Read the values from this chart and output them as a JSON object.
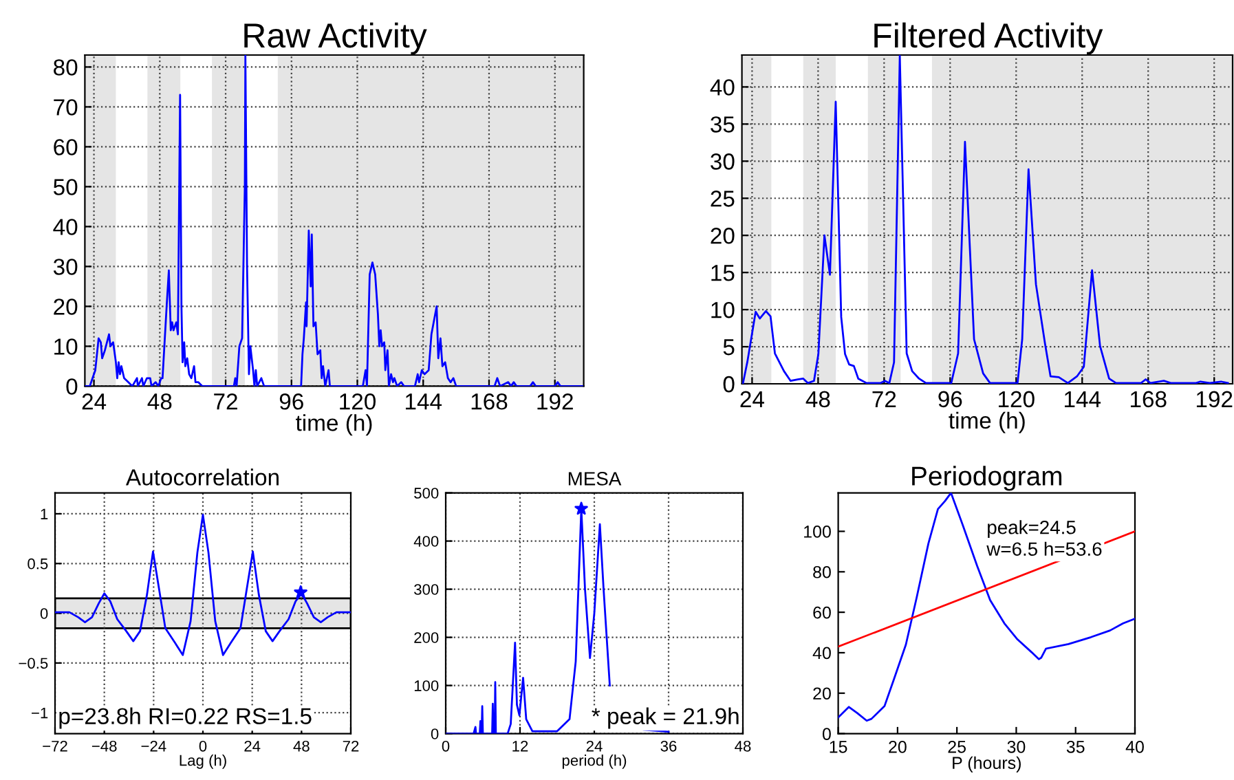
{
  "chart_data": [
    {
      "type": "line",
      "title": "Raw Activity",
      "xlabel": "time (h)",
      "xlim": [
        20.7,
        202.5
      ],
      "ylim": [
        0,
        83
      ],
      "xticks": [
        24,
        48,
        72,
        96,
        120,
        144,
        168,
        192
      ],
      "yticks": [
        0,
        10,
        20,
        30,
        40,
        50,
        60,
        70,
        80
      ],
      "grid": true,
      "bands": [
        {
          "axis": "x",
          "from": 20.7,
          "to": 32,
          "color": "#e5e5e5"
        },
        {
          "axis": "x",
          "from": 43.5,
          "to": 55.5,
          "color": "#e5e5e5"
        },
        {
          "axis": "x",
          "from": 67,
          "to": 79,
          "color": "#e5e5e5"
        },
        {
          "axis": "x",
          "from": 91,
          "to": 202.5,
          "color": "#e5e5e5"
        }
      ],
      "series": [
        {
          "color": "#0000ff",
          "x": [
            21,
            22.5,
            23.5,
            24.5,
            25.7,
            26.5,
            27,
            28,
            29.5,
            30,
            31,
            32,
            32.5,
            33,
            33.5,
            34,
            35,
            36.5,
            38,
            39.7,
            40,
            41.5,
            42,
            43.3,
            44.5,
            45,
            46.5,
            47.5,
            48.5,
            49,
            49.5,
            50.5,
            51.3,
            52,
            52.5,
            53,
            54,
            54.6,
            55.4,
            55.9,
            56.3,
            56.9,
            57.3,
            58,
            58.7,
            59.5,
            60.5,
            61,
            62,
            63.5,
            75,
            75.5,
            76,
            77,
            78,
            79,
            79.2,
            79.8,
            80.5,
            81,
            82,
            82.5,
            83,
            83.5,
            85,
            86,
            99.5,
            100,
            100.5,
            101.3,
            101.5,
            102.3,
            103,
            103.4,
            104,
            104.8,
            105.5,
            106.5,
            107,
            107.5,
            108.3,
            109.5,
            110,
            122,
            123,
            123.5,
            124.5,
            125.5,
            126.5,
            127.5,
            128,
            128.5,
            129,
            129.8,
            130.2,
            131,
            131.5,
            132.3,
            133,
            133.5,
            134.5,
            136,
            137,
            141,
            142,
            142.5,
            143.5,
            144.5,
            146,
            147,
            148.9,
            149.5,
            150.3,
            151,
            152,
            153,
            154,
            155,
            156,
            170,
            171,
            172,
            175,
            176,
            177,
            178,
            183,
            184,
            185,
            192,
            193,
            194,
            202
          ],
          "values": [
            0,
            0,
            2,
            4,
            12,
            11,
            7,
            9,
            13,
            10,
            11,
            6,
            2,
            6,
            3,
            5,
            2,
            1,
            0,
            2,
            0,
            2,
            0,
            2,
            2,
            0,
            1,
            0,
            2,
            2,
            8,
            20,
            29,
            14,
            16,
            14,
            16,
            13,
            73,
            20,
            6,
            11,
            5,
            7,
            3,
            2,
            5,
            1,
            1,
            0,
            0,
            2,
            0,
            10,
            12,
            50,
            83,
            30,
            3,
            10,
            4,
            0,
            4,
            0,
            2,
            0,
            0,
            8,
            12,
            21,
            15,
            39,
            25,
            38,
            15,
            16,
            8,
            9,
            2,
            5,
            0,
            4,
            0,
            0,
            4,
            0,
            28,
            31,
            28,
            18,
            10,
            14,
            10,
            11,
            4,
            9,
            0,
            3,
            1,
            2,
            0,
            1,
            0,
            0,
            3,
            1,
            4,
            3,
            4,
            13,
            20,
            7,
            12,
            5,
            6,
            2,
            1,
            2,
            0,
            0,
            2,
            0,
            1,
            0,
            1,
            0,
            0,
            1,
            0,
            0,
            1,
            0,
            0
          ]
        }
      ]
    },
    {
      "type": "line",
      "title": "Filtered Activity",
      "xlabel": "time (h)",
      "xlim": [
        20.3,
        198.7
      ],
      "ylim": [
        0,
        44.3
      ],
      "xticks": [
        24,
        48,
        72,
        96,
        120,
        144,
        168,
        192
      ],
      "yticks": [
        0,
        5,
        10,
        15,
        20,
        25,
        30,
        35,
        40
      ],
      "grid": true,
      "bands": [
        {
          "axis": "x",
          "from": 20.3,
          "to": 31,
          "color": "#e5e5e5"
        },
        {
          "axis": "x",
          "from": 42.6,
          "to": 54.4,
          "color": "#e5e5e5"
        },
        {
          "axis": "x",
          "from": 66.1,
          "to": 78,
          "color": "#e5e5e5"
        },
        {
          "axis": "x",
          "from": 89.4,
          "to": 198.7,
          "color": "#e5e5e5"
        }
      ],
      "series": [
        {
          "color": "#0000ff",
          "x": [
            20.7,
            22.3,
            25.3,
            26.8,
            29,
            30.7,
            32.3,
            35.6,
            38,
            40.6,
            42.6,
            44.3,
            46.5,
            48.1,
            50.3,
            52.3,
            54.4,
            56.4,
            57.8,
            59.3,
            61,
            62.6,
            65.6,
            70.6,
            72.3,
            73.9,
            75.6,
            77.7,
            80.2,
            82.2,
            84.7,
            87.2,
            96.4,
            98.9,
            101.4,
            104.7,
            108,
            110.5,
            120.5,
            122.2,
            124.5,
            127.2,
            130.5,
            132.5,
            135.5,
            138.8,
            142.1,
            144.6,
            147.6,
            150.5,
            153.8,
            156.3,
            165.4,
            167.1,
            168.8,
            173.7,
            176.2,
            185.4,
            187,
            190.4,
            194.5,
            197
          ],
          "values": [
            0.1,
            3,
            9.7,
            8.8,
            9.8,
            9.1,
            4.1,
            1.7,
            0.4,
            0.6,
            0.7,
            0.1,
            0.4,
            4,
            20,
            14.7,
            38,
            9,
            4,
            2.6,
            2.4,
            0.7,
            0.1,
            0.1,
            0.4,
            0.1,
            2.9,
            44.2,
            4.1,
            1.7,
            0.7,
            0.1,
            0.1,
            4.1,
            32.6,
            6,
            1.4,
            0.1,
            0.1,
            6,
            28.9,
            13.4,
            5.4,
            1,
            0.9,
            0.1,
            1,
            2.3,
            15.3,
            5.1,
            0.7,
            0.1,
            0.1,
            0.6,
            0.1,
            0.4,
            0.1,
            0.1,
            0.3,
            0.1,
            0.3,
            0.1
          ]
        }
      ]
    },
    {
      "type": "line",
      "title": "Autocorrelation",
      "xlabel": "Lag (h)",
      "xlim": [
        -72,
        72
      ],
      "ylim": [
        -1.21,
        1.21
      ],
      "xticks": [
        {
          "value": -72,
          "label": "−72"
        },
        {
          "value": -48,
          "label": "−48"
        },
        {
          "value": -24,
          "label": "−24"
        },
        0,
        24,
        48,
        72
      ],
      "yticks": [
        {
          "value": -1,
          "label": "−1"
        },
        {
          "value": -0.5,
          "label": "−0.5"
        },
        0,
        0.5,
        1
      ],
      "grid": true,
      "bands": [
        {
          "axis": "y",
          "from": -0.15,
          "to": 0.15,
          "color": "#e5e5e5"
        }
      ],
      "annotations": [
        "p=23.8h RI=0.22 RS=1.5"
      ],
      "series": [
        {
          "color": "#0000ff",
          "x": [
            -72,
            -65,
            -60.7,
            -57.4,
            -54,
            -50.7,
            -48,
            -45.1,
            -41.7,
            -37.3,
            -33.9,
            -30.6,
            -27.2,
            -24.3,
            -21.7,
            -18.3,
            -13.8,
            -9.8,
            -6,
            -2.7,
            0,
            2.7,
            6,
            9.8,
            13.8,
            18.3,
            21.7,
            24.3,
            27.2,
            30.6,
            33.9,
            37.3,
            41.7,
            45.1,
            48,
            50.7,
            54,
            57.4,
            60.7,
            65,
            72
          ],
          "values": [
            0.01,
            0.01,
            -0.04,
            -0.09,
            -0.04,
            0.1,
            0.2,
            0.12,
            -0.06,
            -0.18,
            -0.28,
            -0.18,
            0.19,
            0.62,
            0.29,
            -0.15,
            -0.29,
            -0.42,
            -0.08,
            0.61,
            0.99,
            0.61,
            -0.08,
            -0.42,
            -0.29,
            -0.15,
            0.29,
            0.62,
            0.19,
            -0.18,
            -0.28,
            -0.18,
            -0.06,
            0.12,
            0.2,
            0.1,
            -0.04,
            -0.09,
            -0.04,
            0.01,
            0.01
          ]
        },
        {
          "type": "scatter",
          "marker": "star",
          "color": "#0000ff",
          "x": [
            47.6
          ],
          "values": [
            0.21
          ]
        }
      ]
    },
    {
      "type": "line",
      "title": "MESA",
      "xlabel": "period (h)",
      "xlim": [
        0,
        48
      ],
      "ylim": [
        0,
        500
      ],
      "xticks": [
        0,
        12,
        24,
        36,
        48
      ],
      "yticks": [
        0,
        100,
        200,
        300,
        400,
        500
      ],
      "grid": true,
      "annotations": [
        "* peak = 21.9h"
      ],
      "series": [
        {
          "color": "#0000ff",
          "x": [
            0,
            4.5,
            4.8,
            4.9,
            5.5,
            5.6,
            5.7,
            5.8,
            5.9,
            6.0,
            7.5,
            7.6,
            7.7,
            7.9,
            8.0,
            8.1,
            10,
            10.5,
            11.2,
            11.5,
            11.9,
            12.5,
            13,
            14,
            18,
            20,
            21,
            21.9,
            22.5,
            23.3,
            24,
            24.9,
            25.5,
            26.5,
            28,
            32,
            36
          ],
          "values": [
            0,
            0,
            14,
            0,
            0,
            26,
            0,
            0,
            57,
            0,
            0,
            62,
            0,
            0,
            107,
            0,
            0,
            20,
            189,
            60,
            38,
            116,
            30,
            5,
            5,
            30,
            150,
            467,
            300,
            157,
            250,
            435,
            300,
            100,
            null,
            8,
            4
          ]
        },
        {
          "type": "scatter",
          "marker": "star",
          "color": "#0000ff",
          "x": [
            21.9
          ],
          "values": [
            467
          ]
        }
      ]
    },
    {
      "type": "line",
      "title": "Periodogram",
      "xlabel": "P (hours)",
      "xlim": [
        15,
        40
      ],
      "ylim": [
        0,
        119
      ],
      "xticks": [
        15,
        20,
        25,
        30,
        35,
        40
      ],
      "yticks": [
        0,
        20,
        40,
        60,
        80,
        100
      ],
      "grid": false,
      "annotations": [
        "peak=24.5",
        "w=6.5 h=53.6"
      ],
      "series": [
        {
          "color": "#0000ff",
          "x": [
            15,
            15.9,
            16.6,
            17.4,
            17.8,
            18.9,
            19.7,
            20.7,
            21.6,
            22.6,
            23.4,
            24,
            24.5,
            25.5,
            26.7,
            27.8,
            29,
            30.1,
            31.3,
            31.9,
            32.1,
            32.5,
            34.4,
            36.3,
            37.9,
            39,
            40
          ],
          "values": [
            8,
            13.2,
            10.2,
            6.4,
            7.3,
            13.6,
            27,
            44,
            67,
            94,
            111,
            115,
            119,
            103,
            83,
            66,
            54.5,
            46.6,
            40.2,
            36.8,
            37.5,
            42,
            44.3,
            47.7,
            51,
            54.5,
            56.8
          ]
        },
        {
          "color": "#ff0000",
          "x": [
            15,
            40
          ],
          "values": [
            43,
            100
          ]
        }
      ]
    }
  ]
}
